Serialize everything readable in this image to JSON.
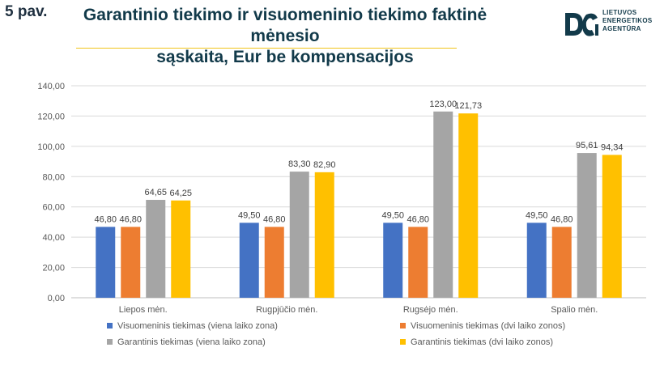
{
  "header": {
    "slide_number": "5 pav.",
    "title_line1": "Garantinio tiekimo ir visuomeninio tiekimo faktinė mėnesio",
    "title_line2": "sąskaita, Eur be kompensacijos"
  },
  "logo": {
    "line1": "LIETUVOS",
    "line2": "ENERGETIKOS",
    "line3": "AGENTŪRA",
    "icon": "lea-logo-icon",
    "color": "#123a4a"
  },
  "chart_data": {
    "type": "bar",
    "title": "",
    "xlabel": "",
    "ylabel": "",
    "ylim": [
      0,
      140
    ],
    "y_ticks": [
      "0,00",
      "20,00",
      "40,00",
      "60,00",
      "80,00",
      "100,00",
      "120,00",
      "140,00"
    ],
    "grid": true,
    "legend_position": "bottom",
    "categories": [
      "Liepos mėn.",
      "Rugpjūčio mėn.",
      "Rugsėjo mėn.",
      "Spalio mėn."
    ],
    "series": [
      {
        "name": "Visuomeninis tiekimas (viena laiko zona)",
        "color": "#4472c4",
        "values": [
          46.8,
          49.5,
          49.5,
          49.5
        ],
        "labels": [
          "46,80",
          "49,50",
          "49,50",
          "49,50"
        ]
      },
      {
        "name": "Visuomeninis tiekimas (dvi laiko zonos)",
        "color": "#ed7d31",
        "values": [
          46.8,
          46.8,
          46.8,
          46.8
        ],
        "labels": [
          "46,80",
          "46,80",
          "46,80",
          "46,80"
        ]
      },
      {
        "name": "Garantinis tiekimas (viena laiko zona)",
        "color": "#a5a5a5",
        "values": [
          64.65,
          83.3,
          123.0,
          95.61
        ],
        "labels": [
          "64,65",
          "83,30",
          "123,00",
          "95,61"
        ]
      },
      {
        "name": "Garantinis tiekimas (dvi laiko zonos)",
        "color": "#ffc000",
        "values": [
          64.25,
          82.9,
          121.73,
          94.34
        ],
        "labels": [
          "64,25",
          "82,90",
          "121,73",
          "94,34"
        ]
      }
    ]
  }
}
